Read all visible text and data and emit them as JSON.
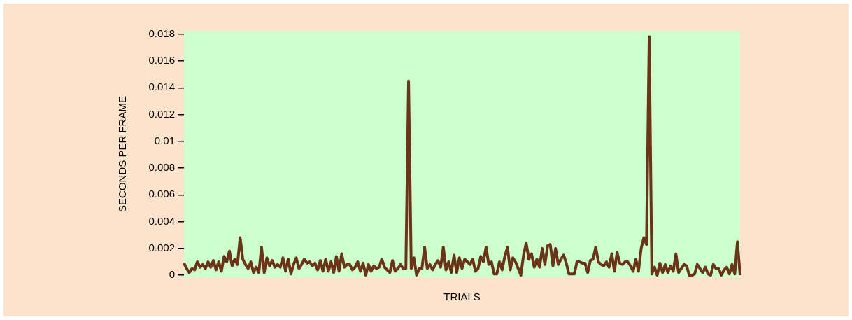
{
  "chart_data": {
    "type": "line",
    "xlabel": "TRIALS",
    "ylabel": "SECONDS PER FRAME",
    "tick_labels": "y",
    "categories": [
      null,
      null,
      null,
      null,
      null,
      null,
      null,
      null,
      null,
      null,
      null,
      null,
      null,
      null,
      null,
      null,
      null,
      null,
      null,
      null,
      null,
      null,
      null,
      null,
      null,
      null,
      null,
      null,
      null,
      null,
      null,
      null,
      null,
      null,
      null,
      null,
      null,
      null,
      null,
      null,
      null,
      null,
      null,
      null,
      null,
      null,
      null,
      null,
      null,
      null,
      null,
      null,
      null,
      null,
      null,
      null,
      null,
      null,
      null,
      null,
      null,
      null,
      null,
      null,
      null,
      null,
      null,
      null,
      null,
      null,
      null,
      null,
      null,
      null,
      null,
      null,
      null,
      null,
      null,
      null,
      null,
      null,
      null,
      null,
      null,
      null,
      null,
      null,
      null,
      null,
      null,
      null,
      null,
      null,
      null,
      null,
      null,
      null,
      null,
      null,
      null,
      null,
      null,
      null,
      null,
      null,
      null,
      null,
      null,
      null,
      null,
      null,
      null,
      null,
      null,
      null,
      null,
      null,
      null,
      null,
      null,
      null,
      null,
      null,
      null,
      null,
      null,
      null,
      null,
      null,
      null,
      null,
      null,
      null,
      null,
      null,
      null,
      null,
      null,
      null,
      null,
      null,
      null,
      null,
      null,
      null,
      null,
      null,
      null,
      null,
      null,
      null,
      null,
      null,
      null,
      null,
      null,
      null,
      null,
      null,
      null,
      null,
      null,
      null,
      null,
      null,
      null,
      null,
      null,
      null,
      null,
      null,
      null,
      null,
      null,
      null,
      null,
      null,
      null,
      null,
      null,
      null,
      null,
      null,
      null,
      null,
      null,
      null,
      null,
      null,
      null,
      null,
      null,
      null,
      null,
      null,
      null,
      null,
      null,
      null,
      null,
      null,
      null,
      null,
      null,
      null,
      null,
      null,
      null
    ],
    "series": [
      {
        "color": "#6b3419",
        "values": [
          0.0009,
          0.0005,
          0.0002,
          0.0005,
          0.0004,
          0.001,
          0.0006,
          0.0008,
          0.0005,
          0.001,
          0.0006,
          0.0011,
          0.0004,
          0.001,
          0.0003,
          0.0014,
          0.001,
          0.0018,
          0.0007,
          0.0012,
          0.0008,
          0.0028,
          0.0012,
          0.0008,
          0.0005,
          0.001,
          0.0002,
          0.0006,
          0.0002,
          0.0021,
          0.0002,
          0.0013,
          0.0007,
          0.0011,
          0.0006,
          0.0008,
          0.0006,
          0.0013,
          0.0003,
          0.0012,
          0.0001,
          0.0008,
          0.0013,
          0.0005,
          0.0008,
          0.0012,
          0.0009,
          0.001,
          0.0007,
          0.0009,
          0.0004,
          0.0011,
          0.0003,
          0.0012,
          0.0003,
          0.001,
          0.0002,
          0.0014,
          0.0003,
          0.0016,
          0.0006,
          0.0008,
          0.0008,
          0.0004,
          0.0006,
          0.001,
          0.0003,
          0.0009,
          0,
          0.0008,
          0.0003,
          0.0007,
          0.0005,
          0.0006,
          0.0012,
          0.0006,
          0.0004,
          0.0002,
          0.0011,
          0.0003,
          0.0005,
          0.0008,
          0.0005,
          0.0005,
          0.0145,
          0.0005,
          0.0013,
          0,
          0.0005,
          0.0005,
          0.0021,
          0.0005,
          0.0008,
          0.0004,
          0.0008,
          0.0011,
          0.0006,
          0.0021,
          0.0004,
          0.001,
          0.0002,
          0.0015,
          0.0002,
          0.0013,
          0.0005,
          0.0012,
          0.001,
          0.0008,
          0.0012,
          0.0003,
          0.0005,
          0.0014,
          0.001,
          0.0021,
          0.0008,
          0.001,
          0.0001,
          0.0001,
          0.001,
          0.0004,
          0.0014,
          0.0021,
          0.0004,
          0.0013,
          0.001,
          0.0005,
          0,
          0.0015,
          0.0024,
          0.0012,
          0.0016,
          0.0006,
          0.0012,
          0.0006,
          0.002,
          0.0008,
          0.0022,
          0.0023,
          0.0007,
          0.002,
          0.0008,
          0.0012,
          0.0015,
          0.0009,
          0.0001,
          0.0001,
          0.0001,
          0.001,
          0.001,
          0.0009,
          0.0009,
          0.0002,
          0.0011,
          0.0012,
          0.0021,
          0.001,
          0.0008,
          0.0007,
          0.001,
          0.0006,
          0.0016,
          0.0003,
          0.0017,
          0.0009,
          0.0008,
          0.001,
          0.001,
          0.0007,
          0.0003,
          0.0012,
          0.0003,
          0.002,
          0.0028,
          0.0023,
          0.0178,
          0.0001,
          0.0006,
          0,
          0.0009,
          0.0002,
          0.0008,
          0.0002,
          0.0007,
          0.0003,
          0.0016,
          0.0002,
          0.0005,
          0.0008,
          0.0007,
          0,
          0,
          0.0001,
          0.0008,
          0.0005,
          0.0002,
          0.0006,
          0.0001,
          0,
          0.0008,
          0.0005,
          0.0005,
          0,
          0.0004,
          0.0006,
          0.0001,
          0.0008,
          0.0001,
          0.0025,
          0
        ]
      }
    ],
    "ylim": [
      -0.00015,
      0.01825
    ],
    "yticks": [
      0,
      0.002,
      0.004,
      0.006,
      0.008,
      0.01,
      0.012,
      0.014,
      0.016,
      0.018
    ]
  }
}
